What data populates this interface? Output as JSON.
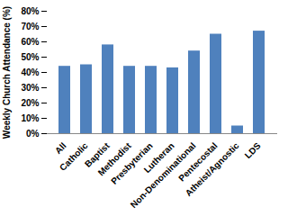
{
  "chart_data": {
    "type": "bar",
    "y_label": "Weekly Church Attendance (%)",
    "categories": [
      "All",
      "Catholic",
      "Baptist",
      "Methodist",
      "Presbyterian",
      "Lutheran",
      "Non-Denominational",
      "Pentecostal",
      "Atheist/Agnostic",
      "LDS"
    ],
    "values": [
      44,
      45,
      58,
      44,
      44,
      43,
      54,
      65,
      5,
      67
    ],
    "color": "#4f81bd",
    "ylim": [
      0,
      80
    ],
    "yticks": [
      {
        "value": 0,
        "label": "0%"
      },
      {
        "value": 10,
        "label": "10%"
      },
      {
        "value": 20,
        "label": "20%"
      },
      {
        "value": 30,
        "label": "30%"
      },
      {
        "value": 40,
        "label": "40%"
      },
      {
        "value": 50,
        "label": "50%"
      },
      {
        "value": 60,
        "label": "60%"
      },
      {
        "value": 70,
        "label": "70%"
      },
      {
        "value": 80,
        "label": "80%"
      }
    ],
    "grid": false
  }
}
